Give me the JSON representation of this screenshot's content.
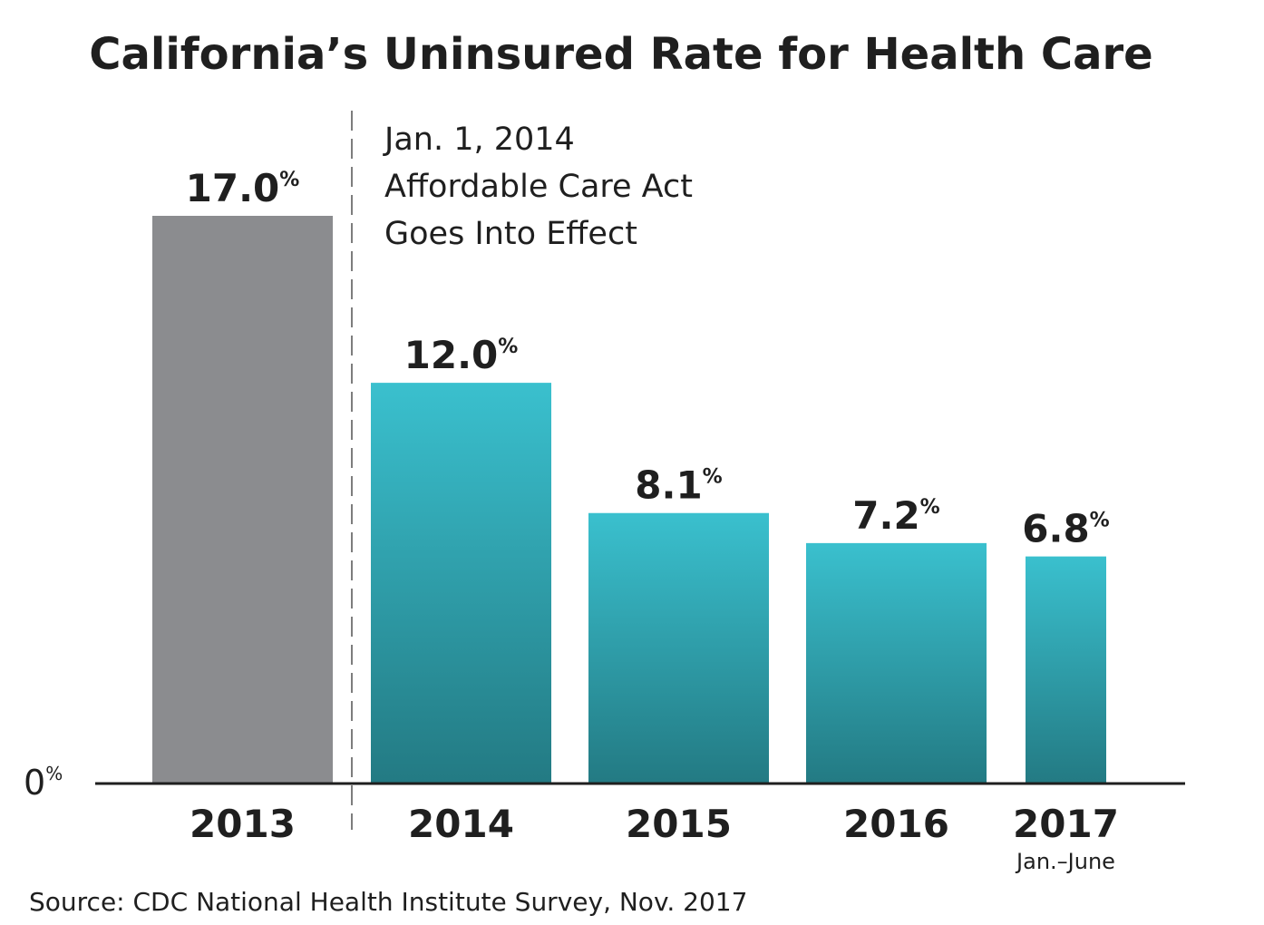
{
  "chart_data": {
    "type": "bar",
    "title": "California’s Uninsured Rate for Health Care",
    "categories": [
      "2013",
      "2014",
      "2015",
      "2016",
      "2017"
    ],
    "category_sublabels": [
      "",
      "",
      "",
      "",
      "Jan.–June"
    ],
    "values": [
      17.0,
      12.0,
      8.1,
      7.2,
      6.8
    ],
    "value_labels": [
      "17.0",
      "12.0",
      "8.1",
      "7.2",
      "6.8"
    ],
    "value_suffix": "%",
    "ylim": [
      0,
      17.0
    ],
    "y_zero_label": "0",
    "y_zero_suffix": "%",
    "xlabel": "",
    "ylabel": "",
    "annotation": {
      "lines": [
        "Jan. 1, 2014",
        "Affordable Care Act",
        "Goes Into Effect"
      ],
      "position": "after first bar"
    },
    "source": "Source: CDC National Health Institute Survey, Nov. 2017",
    "colors": {
      "first_bar": "#8b8c8f",
      "gradient_top": "#3ac0ce",
      "gradient_bottom": "#237a83",
      "axis": "#1f1f1f",
      "divider": "#7d7d7d",
      "text": "#1f1f1f"
    }
  }
}
